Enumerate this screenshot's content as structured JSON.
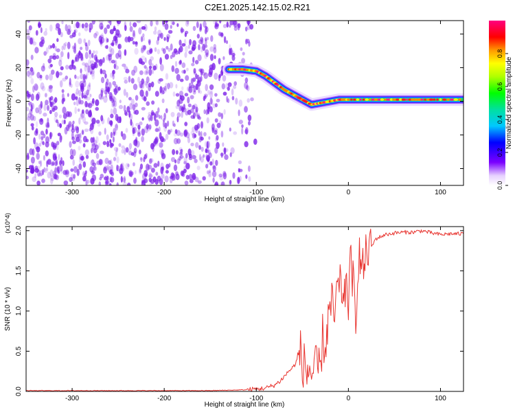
{
  "figure": {
    "title": "C2E1.2025.142.15.02.R21"
  },
  "chart_data": [
    {
      "type": "heatmap",
      "xlabel": "Height of straight line (km)",
      "ylabel": "Frequency (Hz)",
      "xlim": [
        -350,
        125
      ],
      "ylim": [
        -50,
        48
      ],
      "xticks": [
        -300,
        -200,
        -100,
        0,
        100
      ],
      "yticks": [
        -40,
        -20,
        0,
        20,
        40
      ],
      "colorbar": {
        "label": "Normalized spectral amplitude",
        "range": [
          0,
          1
        ],
        "ticks": [
          "0.0",
          "0.2",
          "0.4",
          "0.6",
          "0.8"
        ],
        "tick_values": [
          0,
          0.2,
          0.4,
          0.6,
          0.8
        ],
        "colormap": "rainbow"
      },
      "noise_region_x": [
        -350,
        -100
      ],
      "noise_color": "#7b1fe8",
      "signal_track": {
        "x": [
          -130,
          -115,
          -100,
          -90,
          -80,
          -70,
          -60,
          -50,
          -40,
          -30,
          -20,
          -10,
          0,
          20,
          40,
          60,
          80,
          100,
          125
        ],
        "y": [
          19,
          19,
          18,
          15,
          11,
          7,
          4,
          1,
          -2,
          -1,
          0,
          1,
          1,
          1,
          1,
          1,
          1,
          1,
          1
        ]
      }
    },
    {
      "type": "line",
      "xlabel": "Height of straight line (km)",
      "ylabel": "SNR (10 * v/v)",
      "y_multiplier": "(x10^4)",
      "xlim": [
        -350,
        125
      ],
      "ylim": [
        0,
        2.05
      ],
      "xticks": [
        -300,
        -200,
        -100,
        0,
        100
      ],
      "yticks": [
        "0.0",
        "0.5",
        "1.0",
        "1.5",
        "2.0"
      ],
      "ytick_values": [
        0,
        0.5,
        1.0,
        1.5,
        2.0
      ],
      "line_color": "#e8342f",
      "series": [
        {
          "x": [
            -350,
            -300,
            -250,
            -200,
            -150,
            -110,
            -100,
            -90,
            -80,
            -75,
            -70,
            -65,
            -60,
            -55,
            -52,
            -50,
            -48,
            -45,
            -42,
            -40,
            -38,
            -35,
            -32,
            -30,
            -28,
            -25,
            -22,
            -20,
            -18,
            -15,
            -12,
            -10,
            -8,
            -5,
            -2,
            0,
            2,
            5,
            8,
            10,
            12,
            15,
            18,
            20,
            25,
            30,
            40,
            50,
            60,
            70,
            80,
            90,
            100,
            110,
            125
          ],
          "y": [
            0.01,
            0.01,
            0.01,
            0.01,
            0.01,
            0.02,
            0.03,
            0.04,
            0.08,
            0.12,
            0.18,
            0.25,
            0.3,
            0.4,
            0.5,
            0.3,
            0.35,
            0.22,
            0.3,
            0.2,
            0.25,
            0.3,
            0.28,
            0.3,
            0.7,
            0.5,
            0.9,
            1.0,
            1.1,
            0.9,
            1.3,
            1.2,
            1.4,
            1.0,
            1.5,
            1.1,
            1.6,
            1.4,
            0.8,
            1.6,
            1.7,
            1.5,
            1.6,
            1.75,
            1.8,
            1.9,
            1.95,
            1.97,
            1.98,
            1.98,
            2.0,
            1.97,
            1.95,
            1.96,
            1.96
          ]
        }
      ]
    }
  ]
}
